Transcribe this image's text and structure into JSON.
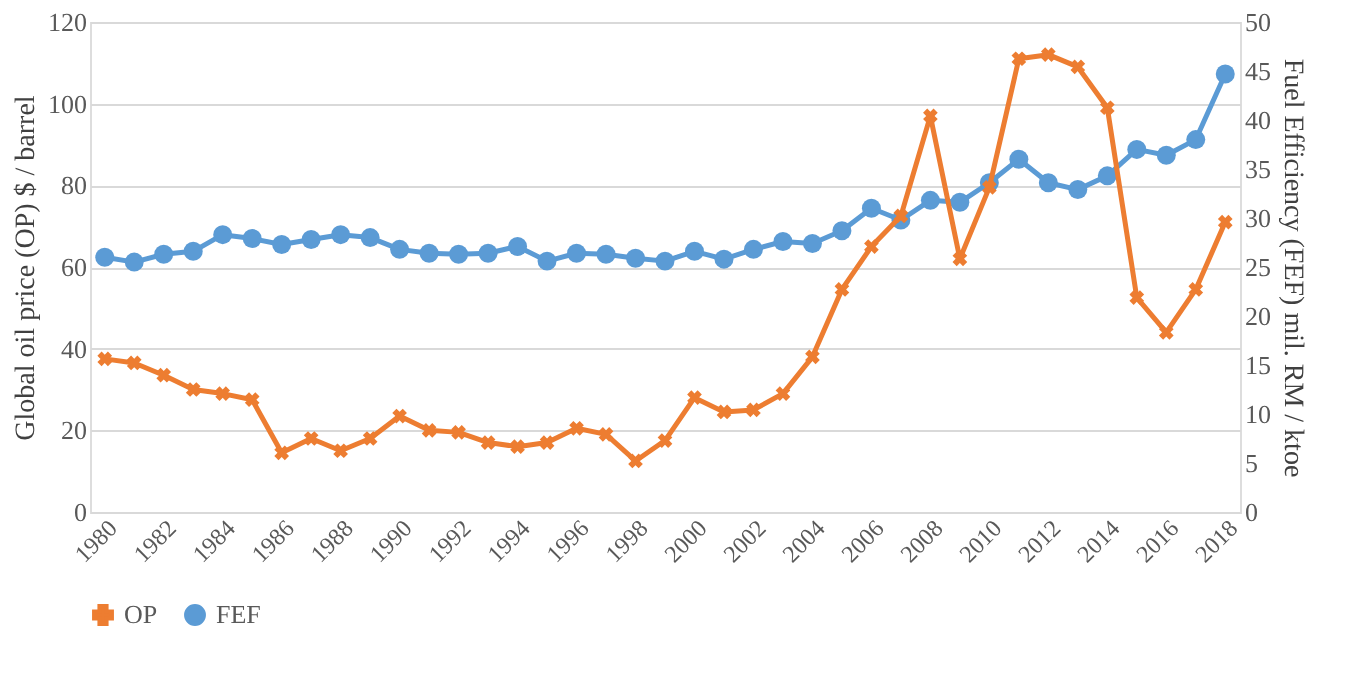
{
  "chart_data": {
    "type": "line",
    "categories": [
      "1980",
      null,
      "1982",
      null,
      "1984",
      null,
      "1986",
      null,
      "1988",
      null,
      "1990",
      null,
      "1992",
      null,
      "1994",
      null,
      "1996",
      null,
      "1998",
      null,
      "2000",
      null,
      "2002",
      null,
      "2004",
      null,
      "2006",
      null,
      "2008",
      null,
      "2010",
      null,
      "2012",
      null,
      "2014",
      null,
      "2016",
      null,
      "2018"
    ],
    "series": [
      {
        "name": "OP",
        "color": "#ed7d31",
        "marker": "cross",
        "values": [
          37.5,
          36.5,
          33.5,
          30,
          29,
          27.5,
          14.5,
          18,
          15,
          18,
          23.5,
          20,
          19.5,
          17,
          16,
          17,
          20.5,
          19,
          12.5,
          17.5,
          28,
          24.5,
          25,
          29,
          38,
          54.5,
          65,
          72.5,
          97,
          62,
          79.5,
          111,
          112,
          109,
          99,
          52.5,
          44,
          54.5,
          71
        ]
      },
      {
        "name": "FEF",
        "color": "#5b9bd5",
        "marker": "circle",
        "axis": "y2",
        "values": [
          26,
          25.5,
          26.3,
          26.6,
          28.3,
          27.9,
          27.3,
          27.8,
          28.3,
          28,
          26.8,
          26.4,
          26.3,
          26.4,
          27.1,
          25.6,
          26.4,
          26.3,
          25.9,
          25.6,
          26.6,
          25.8,
          26.8,
          27.6,
          27.4,
          28.7,
          31,
          29.8,
          31.8,
          31.6,
          33.6,
          36,
          33.6,
          32.9,
          34.3,
          37,
          36.4,
          38,
          44.7
        ]
      }
    ],
    "ylabel": "Global oil price (OP) $ / barrel",
    "y2label": "Fuel Efficiency (FEF) mil. RM / ktoe",
    "ylim": [
      0,
      120
    ],
    "yticks": [
      0,
      20,
      40,
      60,
      80,
      100,
      120
    ],
    "y2lim": [
      0,
      50
    ],
    "y2ticks": [
      0,
      5,
      10,
      15,
      20,
      25,
      30,
      35,
      40,
      45,
      50
    ],
    "grid": "y",
    "legend": "bottom",
    "line_style": "solid"
  }
}
